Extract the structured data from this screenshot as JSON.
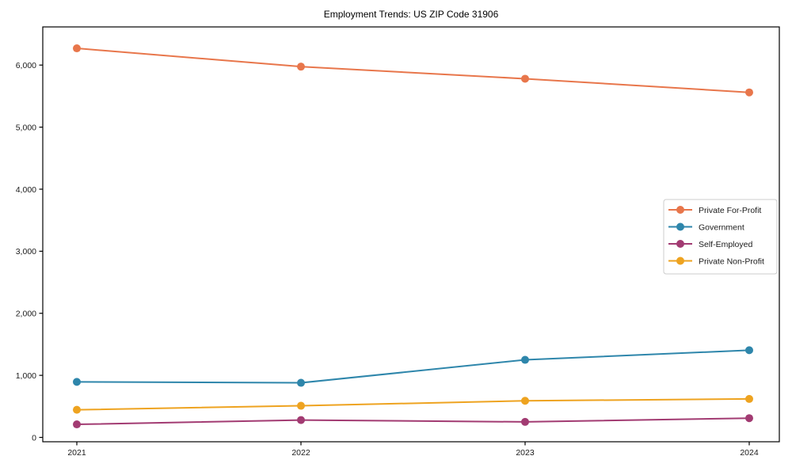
{
  "figure": {
    "background": "#ffffff",
    "spine_color": "#000000",
    "tick_label_color": "#1a1a1a",
    "legend_border_color": "#cccccc"
  },
  "chart_data": {
    "type": "line",
    "title": "Employment Trends: US ZIP Code 31906",
    "categories": [
      "2021",
      "2022",
      "2023",
      "2024"
    ],
    "series": [
      {
        "name": "Private For-Profit",
        "color": "#E8764B",
        "values": [
          6270,
          5975,
          5780,
          5560
        ]
      },
      {
        "name": "Government",
        "color": "#2E86AB",
        "values": [
          895,
          880,
          1250,
          1405
        ]
      },
      {
        "name": "Self-Employed",
        "color": "#A23B72",
        "values": [
          210,
          280,
          250,
          310
        ]
      },
      {
        "name": "Private Non-Profit",
        "color": "#EEA320",
        "values": [
          445,
          510,
          590,
          620
        ]
      }
    ],
    "xlabel": "",
    "ylabel": "",
    "ylim": [
      -70,
      6615
    ],
    "yticks": [
      0,
      1000,
      2000,
      3000,
      4000,
      5000,
      6000
    ],
    "ytick_labels": [
      "0",
      "1,000",
      "2,000",
      "3,000",
      "4,000",
      "5,000",
      "6,000"
    ],
    "grid": false,
    "legend_position": "center right",
    "marker": "circle",
    "line_width": 2
  }
}
